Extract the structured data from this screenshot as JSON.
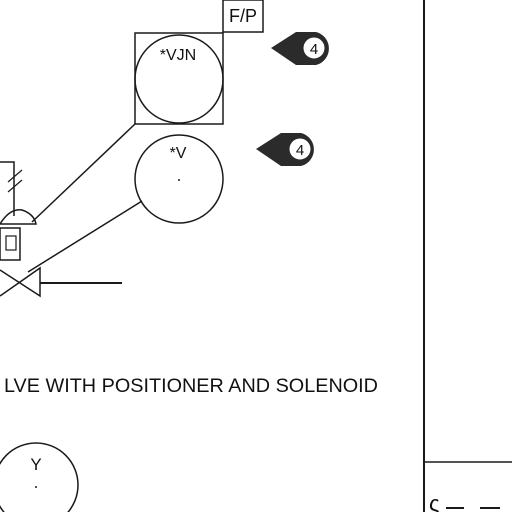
{
  "drawing": {
    "fp_box_label": "F/P",
    "instrument_vjn_label": "*VJN",
    "instrument_v_label": "*V",
    "instrument_y_label": "Y",
    "callout_1_number": "4",
    "callout_2_number": "4",
    "caption": "LVE WITH POSITIONER AND SOLENOID",
    "edge_mark": "ς"
  },
  "colors": {
    "line": "#1a1a1a",
    "background": "#ffffff",
    "callout_fill": "#2b2b2b",
    "callout_inner": "#ffffff"
  }
}
